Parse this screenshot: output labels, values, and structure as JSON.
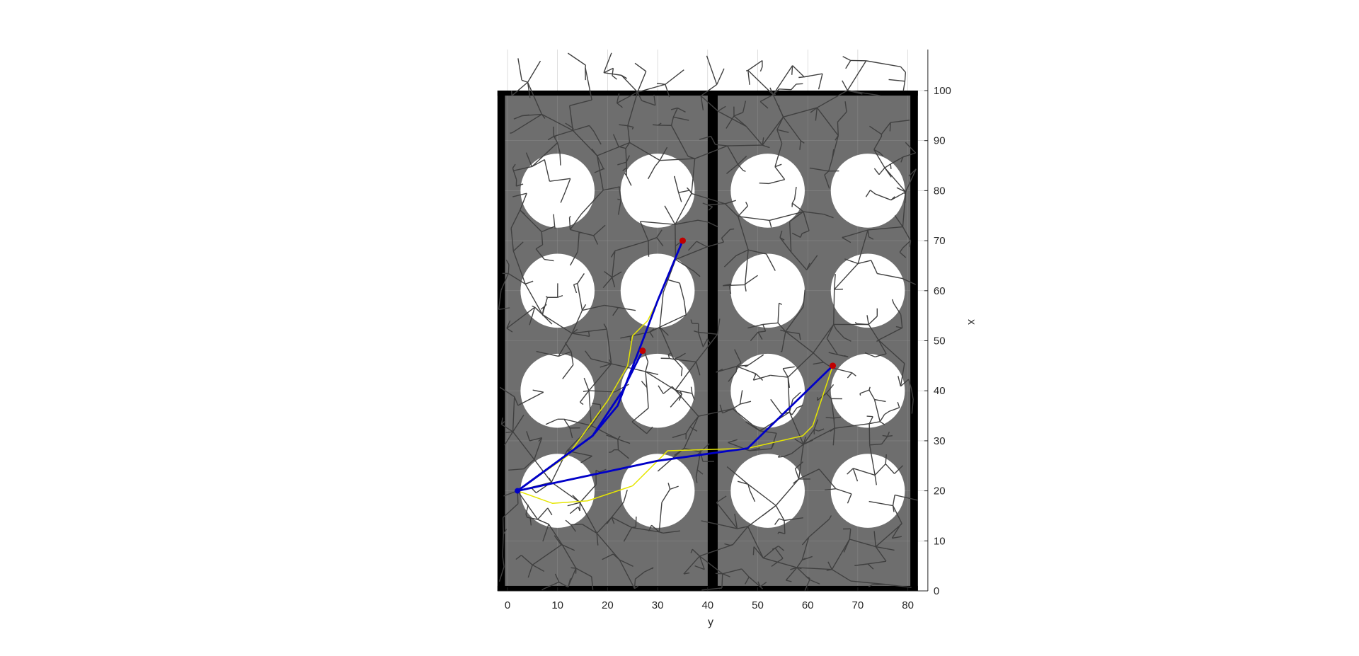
{
  "chart_data": {
    "type": "line",
    "title": "",
    "xlabel": "y",
    "ylabel": "x",
    "y_axis_side": "right",
    "grid": true,
    "xlim": [
      -2,
      84
    ],
    "ylim": [
      0,
      100
    ],
    "x_ticks": [
      0,
      10,
      20,
      30,
      40,
      50,
      60,
      70,
      80
    ],
    "y_ticks": [
      0,
      10,
      20,
      30,
      40,
      50,
      60,
      70,
      80,
      90,
      100
    ],
    "colors": {
      "background": "#6e6e6e",
      "walls": "#000000",
      "obstacles": "#ffffff",
      "tree": "#404040",
      "path_blue": "#0000c8",
      "path_yellow": "#e6e600",
      "goal": "#c00000",
      "start": "#0000c8"
    },
    "map_region": {
      "y_range": [
        -2,
        82
      ],
      "x_range": [
        0,
        100
      ]
    },
    "walls": [
      {
        "y": [
          -2,
          82
        ],
        "x": [
          99,
          100
        ]
      },
      {
        "y": [
          -2,
          82
        ],
        "x": [
          0,
          1
        ]
      },
      {
        "y": [
          -2,
          -0.5
        ],
        "x": [
          0,
          100
        ]
      },
      {
        "y": [
          80.5,
          82
        ],
        "x": [
          0,
          100
        ]
      },
      {
        "y": [
          40,
          42
        ],
        "x": [
          0,
          100
        ]
      }
    ],
    "obstacles": [
      {
        "y": 10,
        "x": 80,
        "r": 7.4
      },
      {
        "y": 30,
        "x": 80,
        "r": 7.4
      },
      {
        "y": 52,
        "x": 80,
        "r": 7.4
      },
      {
        "y": 72,
        "x": 80,
        "r": 7.4
      },
      {
        "y": 10,
        "x": 60,
        "r": 7.4
      },
      {
        "y": 30,
        "x": 60,
        "r": 7.4
      },
      {
        "y": 52,
        "x": 60,
        "r": 7.4
      },
      {
        "y": 72,
        "x": 60,
        "r": 7.4
      },
      {
        "y": 10,
        "x": 40,
        "r": 7.4
      },
      {
        "y": 30,
        "x": 40,
        "r": 7.4
      },
      {
        "y": 52,
        "x": 40,
        "r": 7.4
      },
      {
        "y": 72,
        "x": 40,
        "r": 7.4
      },
      {
        "y": 10,
        "x": 20,
        "r": 7.4
      },
      {
        "y": 30,
        "x": 20,
        "r": 7.4
      },
      {
        "y": 52,
        "x": 20,
        "r": 7.4
      },
      {
        "y": 72,
        "x": 20,
        "r": 7.4
      }
    ],
    "start": {
      "y": 2,
      "x": 20
    },
    "goals": [
      {
        "y": 35,
        "x": 70
      },
      {
        "y": 27,
        "x": 48
      },
      {
        "y": 65,
        "x": 45
      }
    ],
    "series": [
      {
        "style": "blue",
        "points": [
          [
            2,
            20
          ],
          [
            17,
            31
          ],
          [
            23,
            40
          ],
          [
            27,
            48
          ]
        ]
      },
      {
        "style": "blue",
        "points": [
          [
            2,
            20
          ],
          [
            17,
            31
          ],
          [
            22,
            37
          ],
          [
            27,
            50
          ],
          [
            30,
            58
          ],
          [
            35,
            70
          ]
        ]
      },
      {
        "style": "blue",
        "points": [
          [
            2,
            20
          ],
          [
            30,
            26
          ],
          [
            48,
            28.5
          ],
          [
            65,
            45
          ]
        ]
      },
      {
        "style": "yellow",
        "points": [
          [
            2,
            20
          ],
          [
            9,
            17.5
          ],
          [
            16,
            18
          ],
          [
            25,
            21
          ],
          [
            32,
            28
          ],
          [
            48,
            28.5
          ],
          [
            59,
            31
          ],
          [
            61,
            33
          ],
          [
            65,
            45
          ]
        ]
      },
      {
        "style": "yellow",
        "points": [
          [
            2,
            20
          ],
          [
            12,
            27
          ],
          [
            20,
            38
          ],
          [
            24,
            45
          ],
          [
            25,
            51
          ],
          [
            28,
            54
          ],
          [
            30,
            58
          ],
          [
            35,
            70
          ]
        ]
      },
      {
        "style": "yellow",
        "points": [
          [
            22,
            37
          ],
          [
            24,
            42
          ],
          [
            27,
            48
          ]
        ]
      }
    ]
  }
}
